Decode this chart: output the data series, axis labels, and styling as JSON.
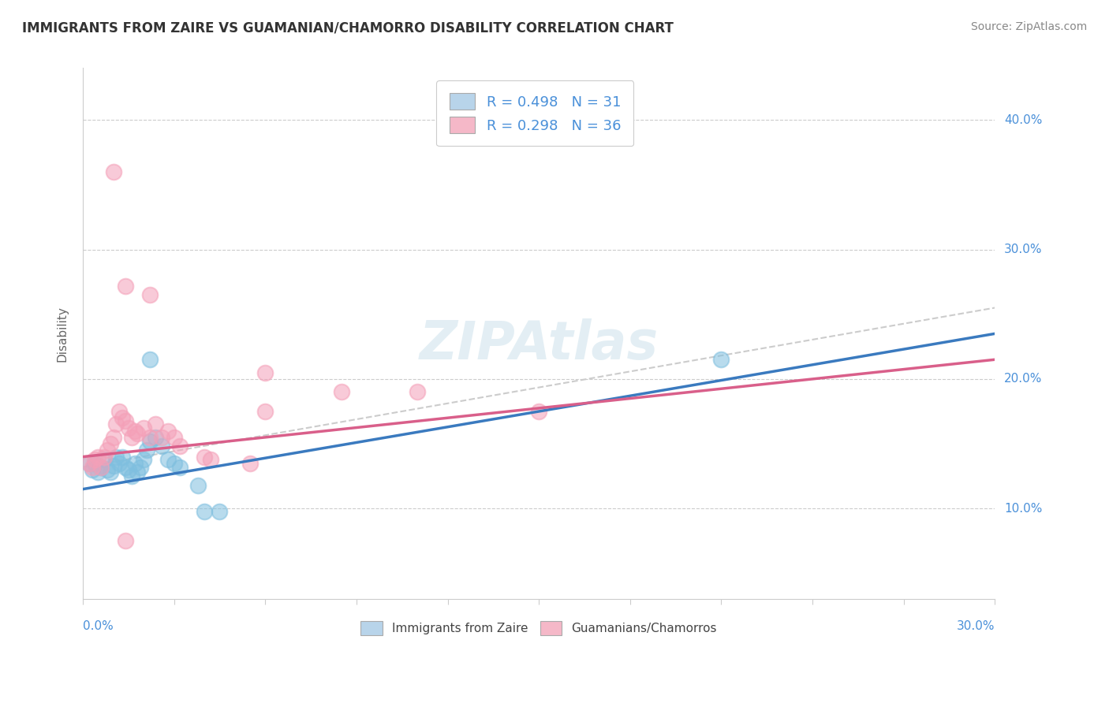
{
  "title": "IMMIGRANTS FROM ZAIRE VS GUAMANIAN/CHAMORRO DISABILITY CORRELATION CHART",
  "source": "Source: ZipAtlas.com",
  "ylabel": "Disability",
  "y_ticks": [
    0.1,
    0.2,
    0.3,
    0.4
  ],
  "y_tick_labels": [
    "10.0%",
    "20.0%",
    "30.0%",
    "40.0%"
  ],
  "xmin": 0.0,
  "xmax": 0.3,
  "ymin": 0.03,
  "ymax": 0.44,
  "legend_entries": [
    {
      "label": "R = 0.498   N = 31",
      "color": "#b8d4ea"
    },
    {
      "label": "R = 0.298   N = 36",
      "color": "#f5b8c8"
    }
  ],
  "legend_bottom_labels": [
    "Immigrants from Zaire",
    "Guamanians/Chamorros"
  ],
  "blue_scatter": [
    [
      0.002,
      0.135
    ],
    [
      0.003,
      0.13
    ],
    [
      0.004,
      0.135
    ],
    [
      0.005,
      0.128
    ],
    [
      0.006,
      0.132
    ],
    [
      0.007,
      0.138
    ],
    [
      0.008,
      0.13
    ],
    [
      0.009,
      0.128
    ],
    [
      0.01,
      0.133
    ],
    [
      0.011,
      0.14
    ],
    [
      0.012,
      0.135
    ],
    [
      0.013,
      0.14
    ],
    [
      0.014,
      0.132
    ],
    [
      0.015,
      0.13
    ],
    [
      0.016,
      0.125
    ],
    [
      0.017,
      0.135
    ],
    [
      0.018,
      0.128
    ],
    [
      0.019,
      0.132
    ],
    [
      0.02,
      0.138
    ],
    [
      0.021,
      0.145
    ],
    [
      0.022,
      0.152
    ],
    [
      0.024,
      0.155
    ],
    [
      0.026,
      0.148
    ],
    [
      0.028,
      0.138
    ],
    [
      0.03,
      0.135
    ],
    [
      0.032,
      0.132
    ],
    [
      0.038,
      0.118
    ],
    [
      0.04,
      0.098
    ],
    [
      0.045,
      0.098
    ],
    [
      0.21,
      0.215
    ],
    [
      0.022,
      0.215
    ]
  ],
  "pink_scatter": [
    [
      0.002,
      0.135
    ],
    [
      0.003,
      0.132
    ],
    [
      0.004,
      0.138
    ],
    [
      0.005,
      0.14
    ],
    [
      0.006,
      0.132
    ],
    [
      0.007,
      0.14
    ],
    [
      0.008,
      0.145
    ],
    [
      0.009,
      0.15
    ],
    [
      0.01,
      0.155
    ],
    [
      0.011,
      0.165
    ],
    [
      0.012,
      0.175
    ],
    [
      0.013,
      0.17
    ],
    [
      0.014,
      0.168
    ],
    [
      0.015,
      0.162
    ],
    [
      0.016,
      0.155
    ],
    [
      0.017,
      0.16
    ],
    [
      0.018,
      0.158
    ],
    [
      0.02,
      0.162
    ],
    [
      0.022,
      0.155
    ],
    [
      0.024,
      0.165
    ],
    [
      0.026,
      0.155
    ],
    [
      0.028,
      0.16
    ],
    [
      0.03,
      0.155
    ],
    [
      0.032,
      0.148
    ],
    [
      0.04,
      0.14
    ],
    [
      0.042,
      0.138
    ],
    [
      0.055,
      0.135
    ],
    [
      0.06,
      0.175
    ],
    [
      0.085,
      0.19
    ],
    [
      0.11,
      0.19
    ],
    [
      0.15,
      0.175
    ],
    [
      0.014,
      0.272
    ],
    [
      0.022,
      0.265
    ],
    [
      0.06,
      0.205
    ],
    [
      0.014,
      0.075
    ],
    [
      0.01,
      0.36
    ]
  ],
  "blue_dot_color": "#7fbfdf",
  "pink_dot_color": "#f4a0b8",
  "trend_blue": "#3a7abf",
  "trend_pink": "#d95f8a",
  "dash_color": "#cccccc",
  "background_color": "#ffffff",
  "grid_color": "#cccccc",
  "title_color": "#333333",
  "source_color": "#888888",
  "axis_color": "#cccccc",
  "tick_label_color": "#4a90d9"
}
